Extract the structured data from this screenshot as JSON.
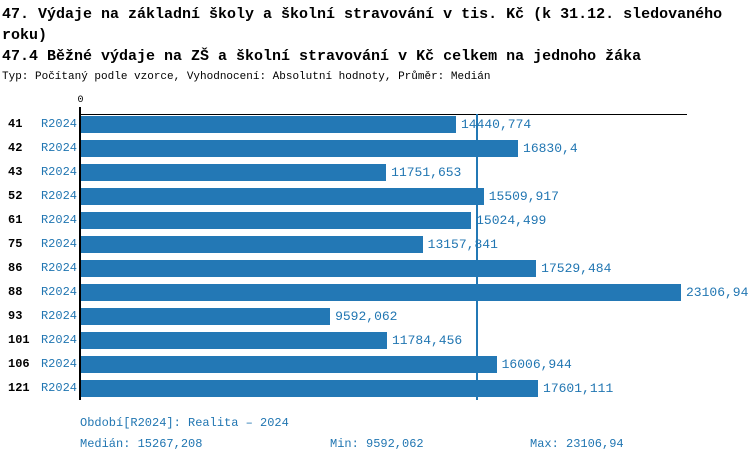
{
  "header": {
    "title": "47. Výdaje na základní školy a školní stravování v tis. Kč (k 31.12. sledovaného roku)",
    "subtitle": "47.4 Běžné výdaje na ZŠ a školní stravování v Kč celkem na jednoho žáka",
    "meta": "Typ: Počítaný podle vzorce, Vyhodnocení: Absolutní hodnoty, Průměr: Medián"
  },
  "chart_data": {
    "type": "bar",
    "orientation": "horizontal",
    "series_label": "R2024",
    "categories": [
      "41",
      "42",
      "43",
      "52",
      "61",
      "75",
      "86",
      "88",
      "93",
      "101",
      "106",
      "121"
    ],
    "values": [
      14440.774,
      16830.4,
      11751.653,
      15509.917,
      15024.499,
      13157.841,
      17529.484,
      23106.94,
      9592.062,
      11784.456,
      16006.944,
      17601.111
    ],
    "value_labels": [
      "14440,774",
      "16830,4",
      "11751,653",
      "15509,917",
      "15024,499",
      "13157,841",
      "17529,484",
      "23106,94",
      "9592,062",
      "11784,456",
      "16006,944",
      "17601,111"
    ],
    "xlim": [
      0,
      23106.94
    ],
    "median": 15267.208,
    "zero_tick_label": "0",
    "bar_color": "#2378b5",
    "median_line_color": "#2378b5",
    "label_color": "#2176b2",
    "grid": "off",
    "legend": "none"
  },
  "footer": {
    "period": "Období[R2024]: Realita – 2024",
    "median": "Medián: 15267,208",
    "min": "Min: 9592,062",
    "max": "Max: 23106,94"
  }
}
